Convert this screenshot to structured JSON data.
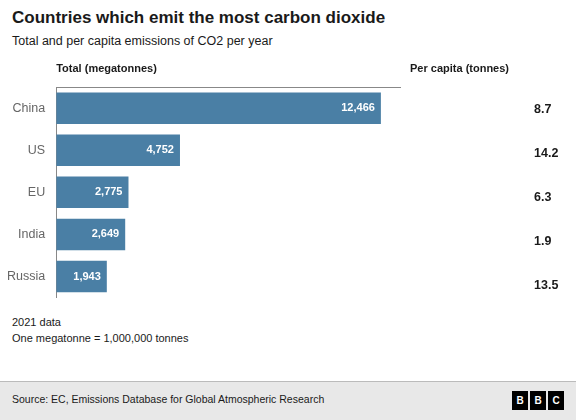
{
  "chart_data": [
    {
      "type": "bar",
      "orientation": "horizontal",
      "title": "Countries which emit the most carbon dioxide",
      "subtitle": "Total and per capita emissions of CO2 per year",
      "xlabel": "Total (megatonnes)",
      "categories": [
        "China",
        "US",
        "EU",
        "India",
        "Russia"
      ],
      "values": [
        12466,
        4752,
        2775,
        2649,
        1943
      ],
      "value_labels": [
        "12,466",
        "4,752",
        "2,775",
        "2,649",
        "1,943"
      ],
      "data_labels": true,
      "color": "#4a7fa5",
      "xlim": [
        0,
        13200
      ],
      "tick_labels": "y",
      "grid": false,
      "annotations": [
        "2021 data",
        "One megatonne = 1,000,000 tonnes",
        "Source: EC, Emissions Database for Global Atmospheric Research",
        "BBC"
      ]
    },
    {
      "type": "bubble",
      "xlabel": "Per capita (tonnes)",
      "categories": [
        "China",
        "US",
        "EU",
        "India",
        "Russia"
      ],
      "values": [
        8.7,
        14.2,
        6.3,
        1.9,
        13.5
      ],
      "data_labels": true,
      "color": "#4a7fa5",
      "tick_labels": false,
      "grid": false
    }
  ]
}
